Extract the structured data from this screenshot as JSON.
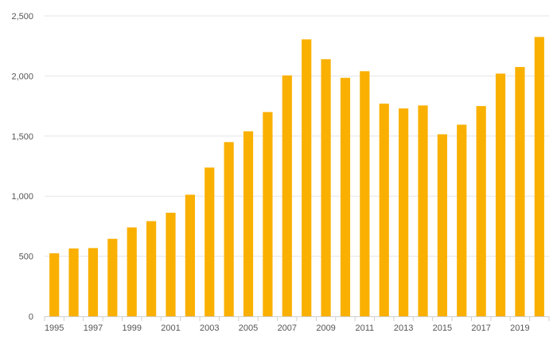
{
  "chart_data": {
    "type": "bar",
    "title": "",
    "xlabel": "",
    "ylabel": "",
    "categories": [
      "1995",
      "1996",
      "1997",
      "1998",
      "1999",
      "2000",
      "2001",
      "2002",
      "2003",
      "2004",
      "2005",
      "2006",
      "2007",
      "2008",
      "2009",
      "2010",
      "2011",
      "2012",
      "2013",
      "2014",
      "2015",
      "2016",
      "2017",
      "2018",
      "2019",
      "2020"
    ],
    "x_tick_labels": [
      "1995",
      "1997",
      "1999",
      "2001",
      "2003",
      "2005",
      "2007",
      "2009",
      "2011",
      "2013",
      "2015",
      "2017",
      "2019"
    ],
    "values": [
      525,
      565,
      568,
      645,
      740,
      792,
      862,
      1012,
      1238,
      1450,
      1540,
      1700,
      2005,
      2305,
      2140,
      1985,
      2040,
      1770,
      1730,
      1755,
      1515,
      1595,
      1750,
      2020,
      2075,
      2325
    ],
    "ylim": [
      0,
      2500
    ],
    "y_ticks": [
      0,
      500,
      1000,
      1500,
      2000,
      2500
    ],
    "y_tick_labels": [
      "0",
      "500",
      "1,000",
      "1,500",
      "2,000",
      "2,500"
    ],
    "bar_color": "#f9b000",
    "grid": true,
    "legend": "none"
  }
}
